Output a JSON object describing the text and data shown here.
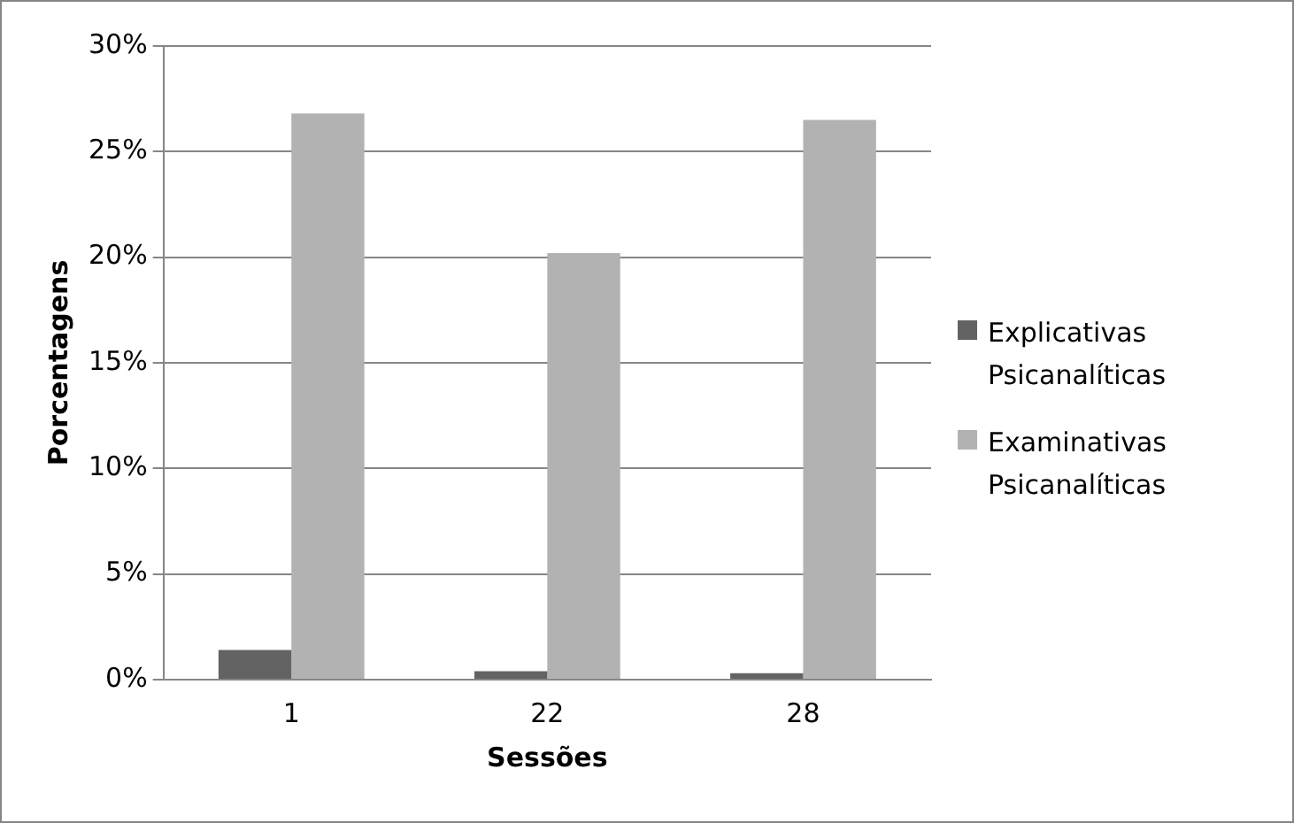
{
  "chart_data": {
    "type": "bar",
    "xlabel": "Sessões",
    "ylabel": "Porcentagens",
    "categories": [
      "1",
      "22",
      "28"
    ],
    "series": [
      {
        "name": "Explicativas Psicanalíticas",
        "color": "#636363",
        "values": [
          1.4,
          0.4,
          0.3
        ]
      },
      {
        "name": "Examinativas Psicanalíticas",
        "color": "#b2b2b2",
        "values": [
          26.8,
          20.2,
          26.5
        ]
      }
    ],
    "ylim": [
      0,
      30
    ],
    "yticks": [
      {
        "value": 0,
        "label": "0%"
      },
      {
        "value": 5,
        "label": "5%"
      },
      {
        "value": 10,
        "label": "10%"
      },
      {
        "value": 15,
        "label": "15%"
      },
      {
        "value": 20,
        "label": "20%"
      },
      {
        "value": 25,
        "label": "25%"
      },
      {
        "value": 30,
        "label": "30%"
      }
    ],
    "grid": "y",
    "legend": "right"
  }
}
